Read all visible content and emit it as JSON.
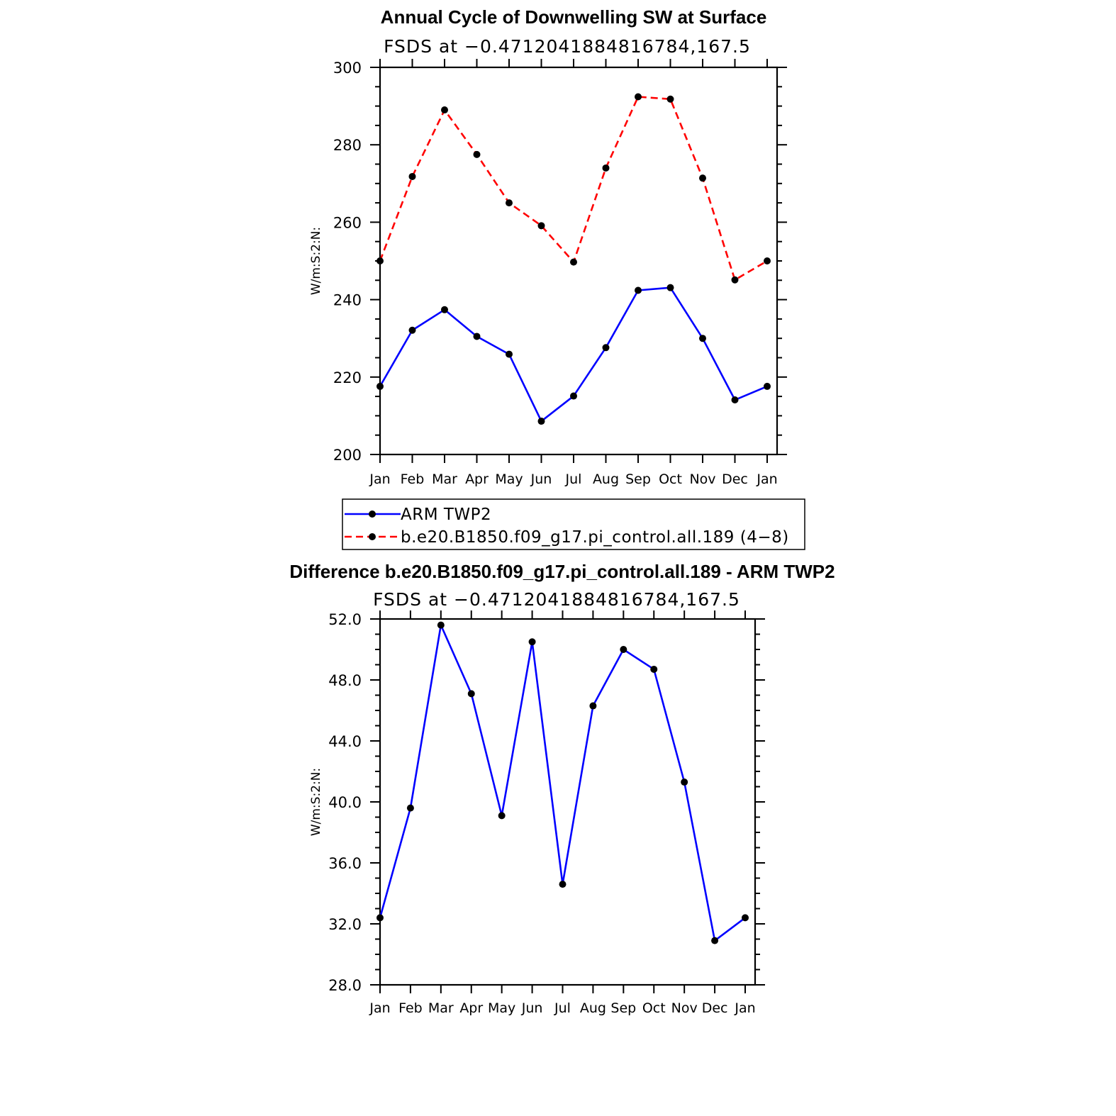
{
  "chart_data": [
    {
      "type": "line",
      "title": "Annual Cycle of Downwelling SW at Surface",
      "subtitle": "FSDS at −0.4712041884816784,167.5",
      "xlabel": "",
      "ylabel": "W/m:S:2:N:",
      "categories": [
        "Jan",
        "Feb",
        "Mar",
        "Apr",
        "May",
        "Jun",
        "Jul",
        "Aug",
        "Sep",
        "Oct",
        "Nov",
        "Dec",
        "Jan"
      ],
      "ylim": [
        200,
        300
      ],
      "yticks": [
        "200",
        "220",
        "240",
        "260",
        "280",
        "300"
      ],
      "grid": false,
      "legend_position": "bottom",
      "series": [
        {
          "name": "ARM TWP2",
          "color": "#0000ff",
          "dash": "solid",
          "values": [
            217.6,
            232.1,
            237.4,
            230.5,
            225.9,
            208.6,
            215.1,
            227.6,
            242.4,
            243.1,
            230.0,
            214.1,
            217.6
          ]
        },
        {
          "name": "b.e20.B1850.f09_g17.pi_control.all.189 (4−8)",
          "color": "#ff0000",
          "dash": "dashed",
          "values": [
            250.0,
            271.8,
            289.0,
            277.5,
            265.0,
            259.1,
            249.7,
            274.0,
            292.4,
            291.8,
            271.4,
            245.1,
            250.0
          ]
        }
      ]
    },
    {
      "type": "line",
      "title": "Difference b.e20.B1850.f09_g17.pi_control.all.189 - ARM TWP2",
      "subtitle": "FSDS at −0.4712041884816784,167.5",
      "xlabel": "",
      "ylabel": "W/m:S:2:N:",
      "categories": [
        "Jan",
        "Feb",
        "Mar",
        "Apr",
        "May",
        "Jun",
        "Jul",
        "Aug",
        "Sep",
        "Oct",
        "Nov",
        "Dec",
        "Jan"
      ],
      "ylim": [
        28,
        52
      ],
      "yticks": [
        "28.0",
        "32.0",
        "36.0",
        "40.0",
        "44.0",
        "48.0",
        "52.0"
      ],
      "grid": false,
      "series": [
        {
          "name": "",
          "color": "#0000ff",
          "dash": "solid",
          "values": [
            32.4,
            39.6,
            51.6,
            47.1,
            39.1,
            50.5,
            34.6,
            46.3,
            50.0,
            48.7,
            41.3,
            30.9,
            32.4
          ]
        }
      ]
    }
  ]
}
